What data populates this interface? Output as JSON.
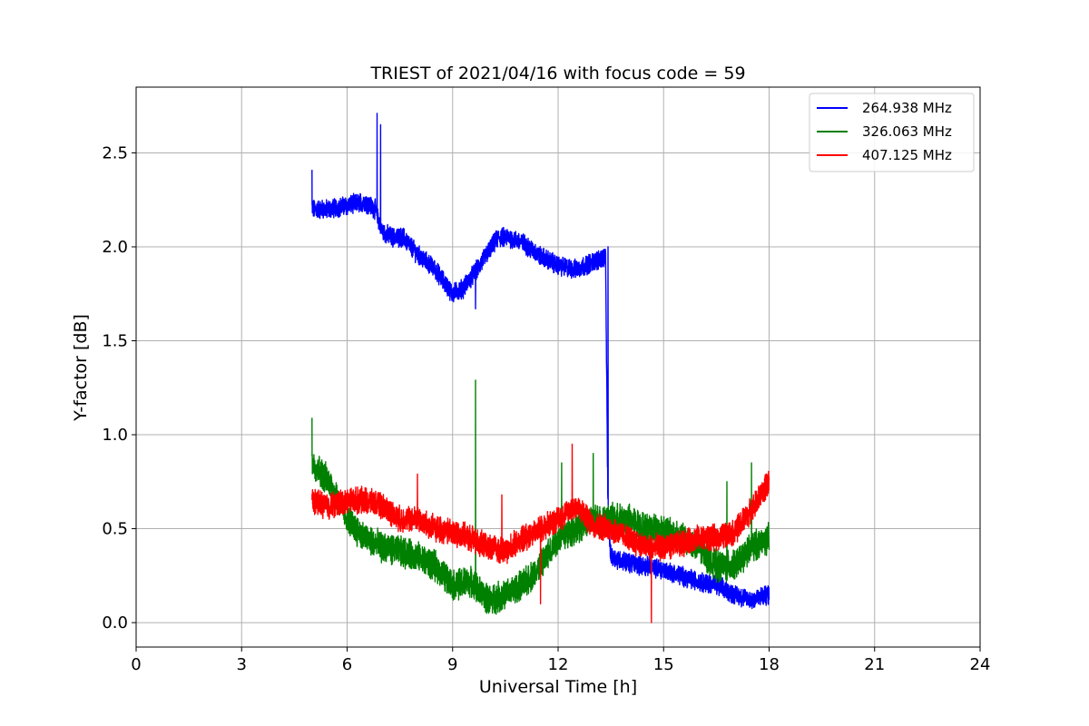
{
  "chart_data": {
    "type": "line",
    "title": "TRIEST of 2021/04/16 with focus code = 59",
    "xlabel": "Universal Time [h]",
    "ylabel": "Y-factor [dB]",
    "xlim": [
      0,
      24
    ],
    "ylim": [
      -0.13,
      2.85
    ],
    "xticks": [
      0,
      3,
      6,
      9,
      12,
      15,
      18,
      21,
      24
    ],
    "yticks": [
      0.0,
      0.5,
      1.0,
      1.5,
      2.0,
      2.5
    ],
    "xtick_labels": [
      "0",
      "3",
      "6",
      "9",
      "12",
      "15",
      "18",
      "21",
      "24"
    ],
    "ytick_labels": [
      "0.0",
      "0.5",
      "1.0",
      "1.5",
      "2.0",
      "2.5"
    ],
    "grid": true,
    "legend_position": "top-right",
    "series": [
      {
        "name": "264.938 MHz",
        "color": "#0000ff",
        "noise": 0.045,
        "x": [
          5.0,
          5.5,
          6.0,
          6.5,
          6.8,
          7.0,
          7.3,
          7.6,
          8.0,
          8.5,
          9.0,
          9.3,
          9.7,
          10.0,
          10.3,
          10.6,
          11.0,
          11.5,
          12.0,
          12.5,
          13.0,
          13.35,
          13.42,
          13.5,
          14.0,
          14.5,
          15.0,
          15.5,
          16.0,
          16.5,
          17.0,
          17.5,
          18.0
        ],
        "y": [
          2.2,
          2.2,
          2.22,
          2.24,
          2.2,
          2.08,
          2.05,
          2.05,
          1.96,
          1.88,
          1.75,
          1.78,
          1.88,
          1.97,
          2.05,
          2.05,
          2.02,
          1.95,
          1.9,
          1.88,
          1.92,
          1.95,
          0.55,
          0.35,
          0.32,
          0.3,
          0.28,
          0.25,
          0.22,
          0.2,
          0.15,
          0.12,
          0.15
        ],
        "spikes": [
          [
            5.0,
            2.41
          ],
          [
            6.85,
            2.71
          ],
          [
            6.95,
            2.65
          ],
          [
            9.65,
            1.67
          ],
          [
            13.42,
            2.0
          ]
        ]
      },
      {
        "name": "326.063 MHz",
        "color": "#008000",
        "noise": 0.07,
        "x": [
          5.0,
          5.5,
          6.0,
          6.5,
          7.0,
          7.5,
          8.0,
          8.5,
          9.0,
          9.5,
          10.0,
          10.5,
          11.0,
          11.5,
          12.0,
          12.5,
          13.0,
          13.5,
          14.0,
          14.5,
          15.0,
          15.5,
          16.0,
          16.5,
          17.0,
          17.5,
          18.0
        ],
        "y": [
          0.85,
          0.75,
          0.55,
          0.45,
          0.4,
          0.38,
          0.35,
          0.3,
          0.2,
          0.22,
          0.12,
          0.15,
          0.2,
          0.3,
          0.45,
          0.5,
          0.55,
          0.55,
          0.55,
          0.5,
          0.5,
          0.45,
          0.4,
          0.3,
          0.3,
          0.4,
          0.45
        ],
        "spikes": [
          [
            5.0,
            1.09
          ],
          [
            9.65,
            1.29
          ],
          [
            12.1,
            0.85
          ],
          [
            13.0,
            0.9
          ],
          [
            16.8,
            0.75
          ],
          [
            17.5,
            0.85
          ]
        ]
      },
      {
        "name": "407.125 MHz",
        "color": "#ff0000",
        "noise": 0.06,
        "x": [
          5.0,
          5.5,
          6.0,
          6.5,
          7.0,
          7.5,
          8.0,
          8.5,
          9.0,
          9.5,
          10.0,
          10.5,
          11.0,
          11.5,
          12.0,
          12.5,
          13.0,
          13.5,
          14.0,
          14.5,
          15.0,
          15.5,
          16.0,
          16.5,
          17.0,
          17.5,
          18.0
        ],
        "y": [
          0.65,
          0.62,
          0.65,
          0.65,
          0.62,
          0.55,
          0.55,
          0.5,
          0.48,
          0.45,
          0.4,
          0.38,
          0.45,
          0.5,
          0.55,
          0.62,
          0.52,
          0.5,
          0.45,
          0.4,
          0.4,
          0.42,
          0.45,
          0.45,
          0.48,
          0.6,
          0.75
        ],
        "spikes": [
          [
            12.4,
            0.95
          ],
          [
            14.65,
            0.0
          ],
          [
            8.0,
            0.79
          ],
          [
            10.4,
            0.68
          ],
          [
            11.5,
            0.1
          ]
        ]
      }
    ]
  }
}
